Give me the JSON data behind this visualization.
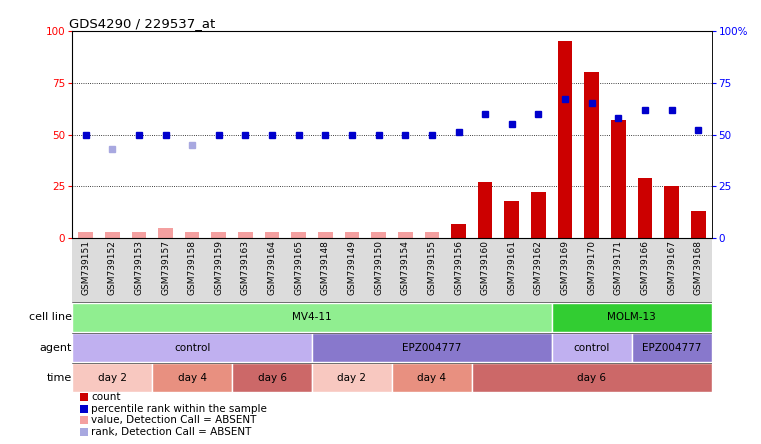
{
  "title": "GDS4290 / 229537_at",
  "samples": [
    "GSM739151",
    "GSM739152",
    "GSM739153",
    "GSM739157",
    "GSM739158",
    "GSM739159",
    "GSM739163",
    "GSM739164",
    "GSM739165",
    "GSM739148",
    "GSM739149",
    "GSM739150",
    "GSM739154",
    "GSM739155",
    "GSM739156",
    "GSM739160",
    "GSM739161",
    "GSM739162",
    "GSM739169",
    "GSM739170",
    "GSM739171",
    "GSM739166",
    "GSM739167",
    "GSM739168"
  ],
  "count_values": [
    3,
    3,
    3,
    5,
    3,
    3,
    3,
    3,
    3,
    3,
    3,
    3,
    3,
    3,
    7,
    27,
    18,
    22,
    95,
    80,
    57,
    29,
    25,
    13
  ],
  "rank_values": [
    50,
    43,
    50,
    50,
    45,
    50,
    50,
    50,
    50,
    50,
    50,
    50,
    50,
    50,
    51,
    60,
    55,
    60,
    67,
    65,
    58,
    62,
    62,
    52
  ],
  "count_absent": [
    true,
    true,
    true,
    true,
    true,
    true,
    true,
    true,
    true,
    true,
    true,
    true,
    true,
    true,
    false,
    false,
    false,
    false,
    false,
    false,
    false,
    false,
    false,
    false
  ],
  "rank_absent": [
    false,
    true,
    false,
    false,
    true,
    false,
    false,
    false,
    false,
    false,
    false,
    false,
    false,
    false,
    false,
    false,
    false,
    false,
    false,
    false,
    false,
    false,
    false,
    false
  ],
  "cell_line_groups": [
    {
      "label": "MV4-11",
      "start": 0,
      "end": 18,
      "color": "#90EE90"
    },
    {
      "label": "MOLM-13",
      "start": 18,
      "end": 24,
      "color": "#32CD32"
    }
  ],
  "agent_groups": [
    {
      "label": "control",
      "start": 0,
      "end": 9,
      "color": "#C0B0F0"
    },
    {
      "label": "EPZ004777",
      "start": 9,
      "end": 18,
      "color": "#8878CC"
    },
    {
      "label": "control",
      "start": 18,
      "end": 21,
      "color": "#C0B0F0"
    },
    {
      "label": "EPZ004777",
      "start": 21,
      "end": 24,
      "color": "#8878CC"
    }
  ],
  "time_groups": [
    {
      "label": "day 2",
      "start": 0,
      "end": 3,
      "color": "#F8C8C0"
    },
    {
      "label": "day 4",
      "start": 3,
      "end": 6,
      "color": "#E89080"
    },
    {
      "label": "day 6",
      "start": 6,
      "end": 9,
      "color": "#CC6868"
    },
    {
      "label": "day 2",
      "start": 9,
      "end": 12,
      "color": "#F8C8C0"
    },
    {
      "label": "day 4",
      "start": 12,
      "end": 15,
      "color": "#E89080"
    },
    {
      "label": "day 6",
      "start": 15,
      "end": 24,
      "color": "#CC6868"
    }
  ],
  "bar_color_present": "#CC0000",
  "bar_color_absent": "#F4A0A0",
  "rank_color_present": "#0000CC",
  "rank_color_absent": "#A8A8E0",
  "yticks": [
    0,
    25,
    50,
    75,
    100
  ],
  "legend_labels": [
    "count",
    "percentile rank within the sample",
    "value, Detection Call = ABSENT",
    "rank, Detection Call = ABSENT"
  ],
  "legend_colors": [
    "#CC0000",
    "#0000CC",
    "#F4A0A0",
    "#A8A8E0"
  ]
}
